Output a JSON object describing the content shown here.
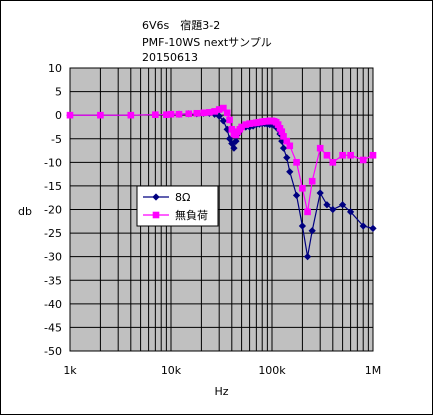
{
  "title_lines": [
    "6V6s　宿題3-2",
    "PMF-10WS nextサンプル",
    "20150613"
  ],
  "chart_data": {
    "type": "scatter",
    "xscale": "log",
    "xlim": [
      1000,
      1000000
    ],
    "ylim": [
      -50,
      10
    ],
    "xlabel": "Hz",
    "ylabel": "db",
    "grid": true,
    "legend_position": "left-middle",
    "yticks": [
      10,
      5,
      0,
      -5,
      -10,
      -15,
      -20,
      -25,
      -30,
      -35,
      -40,
      -45,
      -50
    ],
    "xtick_labels": [
      {
        "v": 1000,
        "label": "1k"
      },
      {
        "v": 10000,
        "label": "10k"
      },
      {
        "v": 100000,
        "label": "100k"
      },
      {
        "v": 1000000,
        "label": "1M"
      }
    ],
    "series": [
      {
        "name": "8Ω",
        "color": "#000080",
        "marker": "diamond",
        "points": [
          [
            1000,
            0
          ],
          [
            2000,
            0
          ],
          [
            4000,
            0
          ],
          [
            7000,
            0.1
          ],
          [
            9000,
            0.1
          ],
          [
            10000,
            0.2
          ],
          [
            12000,
            0.2
          ],
          [
            15000,
            0.3
          ],
          [
            18000,
            0.3
          ],
          [
            21000,
            0.4
          ],
          [
            24000,
            0.4
          ],
          [
            27000,
            0.2
          ],
          [
            30000,
            -0.2
          ],
          [
            33000,
            -1.2
          ],
          [
            36000,
            -3
          ],
          [
            38000,
            -5
          ],
          [
            40000,
            -6
          ],
          [
            42000,
            -7
          ],
          [
            44000,
            -5.5
          ],
          [
            46000,
            -4
          ],
          [
            48000,
            -3
          ],
          [
            50000,
            -2.5
          ],
          [
            55000,
            -2.5
          ],
          [
            60000,
            -2.5
          ],
          [
            65000,
            -2.3
          ],
          [
            70000,
            -2
          ],
          [
            75000,
            -1.9
          ],
          [
            80000,
            -1.8
          ],
          [
            85000,
            -1.8
          ],
          [
            90000,
            -1.9
          ],
          [
            95000,
            -2
          ],
          [
            100000,
            -2
          ],
          [
            105000,
            -2.2
          ],
          [
            110000,
            -2.5
          ],
          [
            115000,
            -3
          ],
          [
            120000,
            -4
          ],
          [
            125000,
            -5.5
          ],
          [
            130000,
            -7
          ],
          [
            140000,
            -9
          ],
          [
            150000,
            -12
          ],
          [
            175000,
            -17
          ],
          [
            200000,
            -23.5
          ],
          [
            225000,
            -30
          ],
          [
            250000,
            -24.5
          ],
          [
            300000,
            -16.5
          ],
          [
            350000,
            -19
          ],
          [
            400000,
            -20
          ],
          [
            500000,
            -19
          ],
          [
            600000,
            -20.5
          ],
          [
            800000,
            -23.5
          ],
          [
            1000000,
            -24
          ]
        ]
      },
      {
        "name": "無負荷",
        "color": "#ff00ff",
        "marker": "square",
        "points": [
          [
            1000,
            0
          ],
          [
            2000,
            0
          ],
          [
            4000,
            0
          ],
          [
            7000,
            0.1
          ],
          [
            9000,
            0.1
          ],
          [
            10000,
            0.2
          ],
          [
            12000,
            0.2
          ],
          [
            15000,
            0.3
          ],
          [
            18000,
            0.4
          ],
          [
            21000,
            0.5
          ],
          [
            24000,
            0.6
          ],
          [
            27000,
            0.8
          ],
          [
            30000,
            1.2
          ],
          [
            33000,
            1.5
          ],
          [
            36000,
            0.5
          ],
          [
            38000,
            -1
          ],
          [
            40000,
            -3
          ],
          [
            42000,
            -4
          ],
          [
            44000,
            -4.2
          ],
          [
            46000,
            -3.5
          ],
          [
            48000,
            -3
          ],
          [
            50000,
            -2.5
          ],
          [
            55000,
            -2
          ],
          [
            60000,
            -1.8
          ],
          [
            65000,
            -1.7
          ],
          [
            70000,
            -1.6
          ],
          [
            75000,
            -1.5
          ],
          [
            80000,
            -1.4
          ],
          [
            85000,
            -1.3
          ],
          [
            90000,
            -1.3
          ],
          [
            95000,
            -1.2
          ],
          [
            100000,
            -1.2
          ],
          [
            105000,
            -1.3
          ],
          [
            110000,
            -1.5
          ],
          [
            115000,
            -2
          ],
          [
            120000,
            -2.8
          ],
          [
            125000,
            -3.5
          ],
          [
            130000,
            -4.5
          ],
          [
            140000,
            -5.5
          ],
          [
            150000,
            -6.5
          ],
          [
            175000,
            -10
          ],
          [
            200000,
            -15.5
          ],
          [
            225000,
            -20.5
          ],
          [
            250000,
            -14
          ],
          [
            300000,
            -7
          ],
          [
            350000,
            -8.5
          ],
          [
            400000,
            -10
          ],
          [
            500000,
            -8.5
          ],
          [
            600000,
            -8.5
          ],
          [
            800000,
            -9.5
          ],
          [
            1000000,
            -8.5
          ]
        ]
      }
    ]
  }
}
